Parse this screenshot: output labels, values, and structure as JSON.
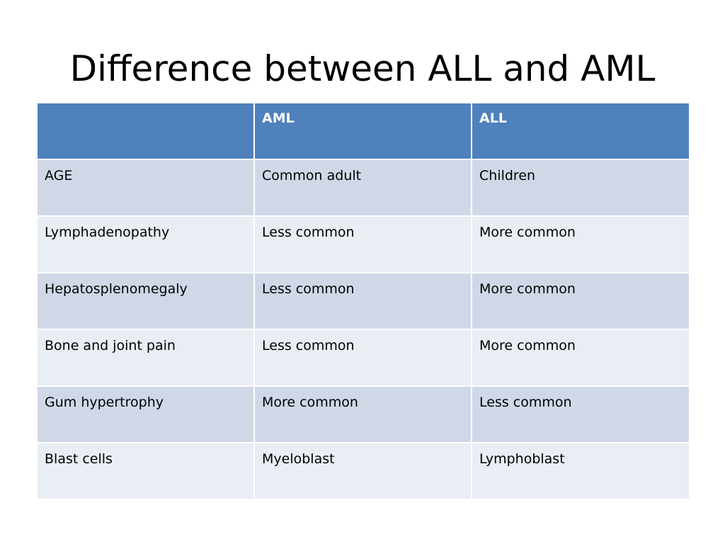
{
  "title": "Difference between ALL and AML",
  "table": {
    "headers": [
      "",
      "AML",
      "ALL"
    ],
    "rows": [
      [
        "AGE",
        "Common adult",
        "Children"
      ],
      [
        "Lymphadenopathy",
        "Less common",
        "More common"
      ],
      [
        "Hepatosplenomegaly",
        "Less common",
        "More common"
      ],
      [
        "Bone and joint pain",
        "Less common",
        "More common"
      ],
      [
        "Gum hypertrophy",
        "More common",
        "Less common"
      ],
      [
        "Blast cells",
        "Myeloblast",
        "Lymphoblast"
      ]
    ]
  },
  "colors": {
    "header_bg": "#4f81bd",
    "header_text": "#ffffff",
    "row_odd_bg": "#d0d8e8",
    "row_even_bg": "#e9edf4"
  }
}
